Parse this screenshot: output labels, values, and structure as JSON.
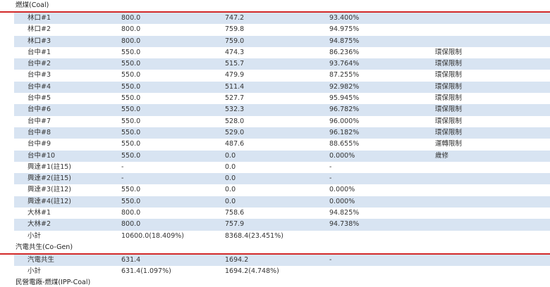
{
  "sections": [
    {
      "title": "燃煤(Coal)",
      "rows": [
        {
          "name": "林口#1",
          "capacity": "800.0",
          "generation": "747.2",
          "ratio": "93.400%",
          "note": ""
        },
        {
          "name": "林口#2",
          "capacity": "800.0",
          "generation": "759.8",
          "ratio": "94.975%",
          "note": ""
        },
        {
          "name": "林口#3",
          "capacity": "800.0",
          "generation": "759.0",
          "ratio": "94.875%",
          "note": ""
        },
        {
          "name": "台中#1",
          "capacity": "550.0",
          "generation": "474.3",
          "ratio": "86.236%",
          "note": "環保限制"
        },
        {
          "name": "台中#2",
          "capacity": "550.0",
          "generation": "515.7",
          "ratio": "93.764%",
          "note": "環保限制"
        },
        {
          "name": "台中#3",
          "capacity": "550.0",
          "generation": "479.9",
          "ratio": "87.255%",
          "note": "環保限制"
        },
        {
          "name": "台中#4",
          "capacity": "550.0",
          "generation": "511.4",
          "ratio": "92.982%",
          "note": "環保限制"
        },
        {
          "name": "台中#5",
          "capacity": "550.0",
          "generation": "527.7",
          "ratio": "95.945%",
          "note": "環保限制"
        },
        {
          "name": "台中#6",
          "capacity": "550.0",
          "generation": "532.3",
          "ratio": "96.782%",
          "note": "環保限制"
        },
        {
          "name": "台中#7",
          "capacity": "550.0",
          "generation": "528.0",
          "ratio": "96.000%",
          "note": "環保限制"
        },
        {
          "name": "台中#8",
          "capacity": "550.0",
          "generation": "529.0",
          "ratio": "96.182%",
          "note": "環保限制"
        },
        {
          "name": "台中#9",
          "capacity": "550.0",
          "generation": "487.6",
          "ratio": "88.655%",
          "note": "運轉限制"
        },
        {
          "name": "台中#10",
          "capacity": "550.0",
          "generation": "0.0",
          "ratio": "0.000%",
          "note": "歲修"
        },
        {
          "name": "興達#1(註15)",
          "capacity": "-",
          "generation": "0.0",
          "ratio": "-",
          "note": ""
        },
        {
          "name": "興達#2(註15)",
          "capacity": "-",
          "generation": "0.0",
          "ratio": "-",
          "note": ""
        },
        {
          "name": "興達#3(註12)",
          "capacity": "550.0",
          "generation": "0.0",
          "ratio": "0.000%",
          "note": ""
        },
        {
          "name": "興達#4(註12)",
          "capacity": "550.0",
          "generation": "0.0",
          "ratio": "0.000%",
          "note": ""
        },
        {
          "name": "大林#1",
          "capacity": "800.0",
          "generation": "758.6",
          "ratio": "94.825%",
          "note": ""
        },
        {
          "name": "大林#2",
          "capacity": "800.0",
          "generation": "757.9",
          "ratio": "94.738%",
          "note": ""
        }
      ],
      "subtotal": {
        "name": "小計",
        "capacity": "10600.0(18.409%)",
        "generation": "8368.4(23.451%)"
      }
    },
    {
      "title": "汽電共生(Co-Gen)",
      "rows": [
        {
          "name": "汽電共生",
          "capacity": "631.4",
          "generation": "1694.2",
          "ratio": "-",
          "note": ""
        }
      ],
      "subtotal": {
        "name": "小計",
        "capacity": "631.4(1.097%)",
        "generation": "1694.2(4.748%)"
      }
    }
  ],
  "next_section_title": "民營電廠-燃煤(IPP-Coal)"
}
